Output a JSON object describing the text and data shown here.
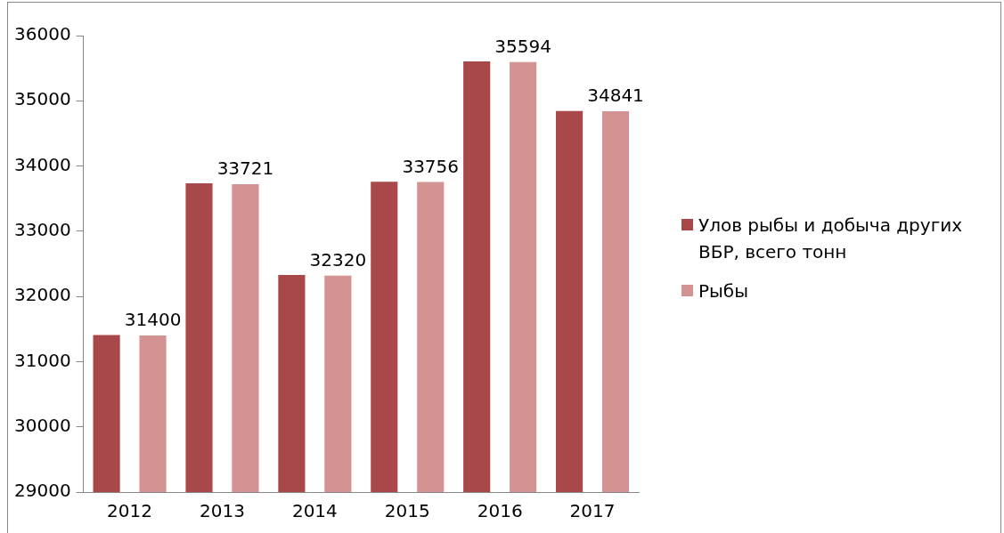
{
  "chart_data": {
    "type": "bar",
    "categories": [
      "2012",
      "2013",
      "2014",
      "2015",
      "2016",
      "2017"
    ],
    "series": [
      {
        "name": "Улов рыбы и добыча других ВБР, всего тонн",
        "color": "#a9484a",
        "values": [
          31410,
          33735,
          32330,
          33760,
          35605,
          34845
        ]
      },
      {
        "name": "Рыбы",
        "color": "#d39393",
        "values": [
          31400,
          33721,
          32320,
          33756,
          35594,
          34841
        ],
        "value_labels": [
          "31400",
          "33721",
          "32320",
          "33756",
          "35594",
          "34841"
        ]
      }
    ],
    "ylim": [
      29000,
      36000
    ],
    "yticks": [
      29000,
      30000,
      31000,
      32000,
      33000,
      34000,
      35000,
      36000
    ],
    "grid": false,
    "legend": "right"
  }
}
